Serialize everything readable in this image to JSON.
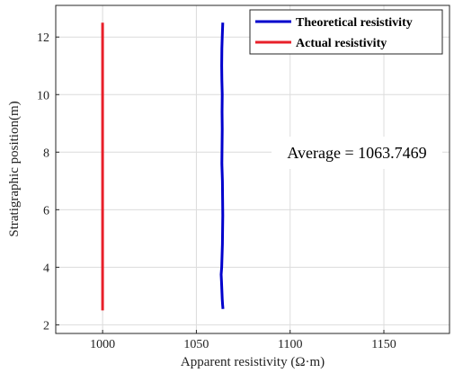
{
  "chart_data": {
    "type": "line",
    "xlabel": "Apparent resistivity (Ω·m)",
    "ylabel": "Stratigraphic position(m)",
    "xlim": [
      975,
      1185
    ],
    "ylim": [
      1.7,
      13.1
    ],
    "x_ticks": [
      1000,
      1050,
      1100,
      1150
    ],
    "y_ticks": [
      2,
      4,
      6,
      8,
      10,
      12
    ],
    "grid": true,
    "legend_position": "top-right",
    "series": [
      {
        "name": "Theoretical resistivity",
        "color": "#0000cc",
        "points": [
          [
            1064.2,
            2.55
          ],
          [
            1064.0,
            2.7
          ],
          [
            1063.8,
            2.9
          ],
          [
            1063.6,
            3.2
          ],
          [
            1063.4,
            3.5
          ],
          [
            1063.2,
            3.75
          ],
          [
            1063.5,
            4.0
          ],
          [
            1063.7,
            4.4
          ],
          [
            1063.9,
            4.8
          ],
          [
            1064.0,
            5.3
          ],
          [
            1064.1,
            5.8
          ],
          [
            1064.0,
            6.4
          ],
          [
            1063.9,
            7.0
          ],
          [
            1063.6,
            7.6
          ],
          [
            1063.7,
            8.2
          ],
          [
            1063.8,
            8.8
          ],
          [
            1063.7,
            9.4
          ],
          [
            1063.8,
            10.0
          ],
          [
            1063.6,
            10.5
          ],
          [
            1063.5,
            11.0
          ],
          [
            1063.6,
            11.6
          ],
          [
            1063.8,
            12.0
          ],
          [
            1064.1,
            12.5
          ]
        ]
      },
      {
        "name": "Actual resistivity",
        "color": "#e8202a",
        "points": [
          [
            1000,
            2.5
          ],
          [
            1000,
            12.5
          ]
        ]
      }
    ],
    "annotation": "Average = 1063.7469"
  }
}
